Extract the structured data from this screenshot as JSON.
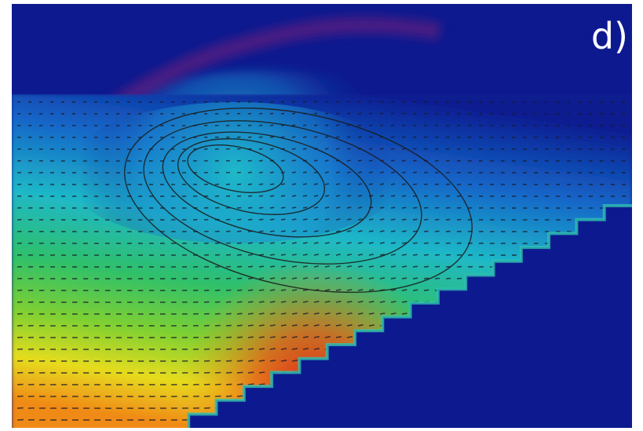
{
  "panel_label": "d)"
}
